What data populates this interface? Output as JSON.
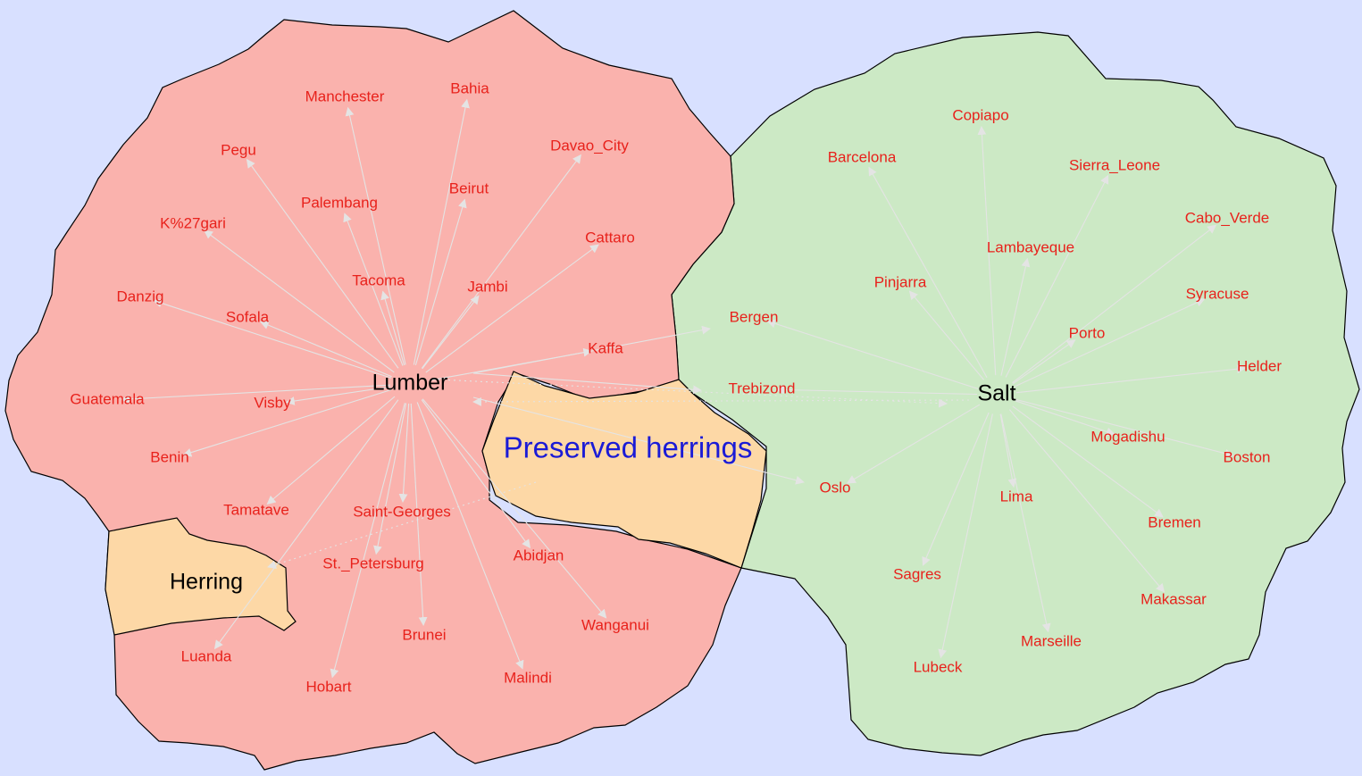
{
  "colors": {
    "background": "#d8e0ff",
    "lumber_region": "#fab2ad",
    "salt_region": "#cce9c5",
    "herring_region": "#fdd8a6",
    "city_label": "#e8221c",
    "hub_label": "#000000",
    "preserved_label": "#1b1bd6",
    "edge": "#e4e4e4"
  },
  "regions": {
    "lumber": "Lumber",
    "salt": "Salt",
    "herring": "Herring",
    "preserved_herrings": "Preserved herrings"
  },
  "lumber_cities": [
    "Manchester",
    "Bahia",
    "Pegu",
    "Davao_City",
    "Palembang",
    "Beirut",
    "K%27gari",
    "Cattaro",
    "Tacoma",
    "Jambi",
    "Danzig",
    "Sofala",
    "Kaffa",
    "Guatemala",
    "Visby",
    "Benin",
    "Tamatave",
    "Saint-Georges",
    "St._Petersburg",
    "Abidjan",
    "Wanganui",
    "Brunei",
    "Luanda",
    "Hobart",
    "Malindi"
  ],
  "salt_cities": [
    "Copiapo",
    "Barcelona",
    "Sierra_Leone",
    "Cabo_Verde",
    "Lambayeque",
    "Pinjarra",
    "Syracuse",
    "Bergen",
    "Porto",
    "Helder",
    "Trebizond",
    "Mogadishu",
    "Boston",
    "Oslo",
    "Lima",
    "Bremen",
    "Sagres",
    "Makassar",
    "Marseille",
    "Lubeck"
  ]
}
